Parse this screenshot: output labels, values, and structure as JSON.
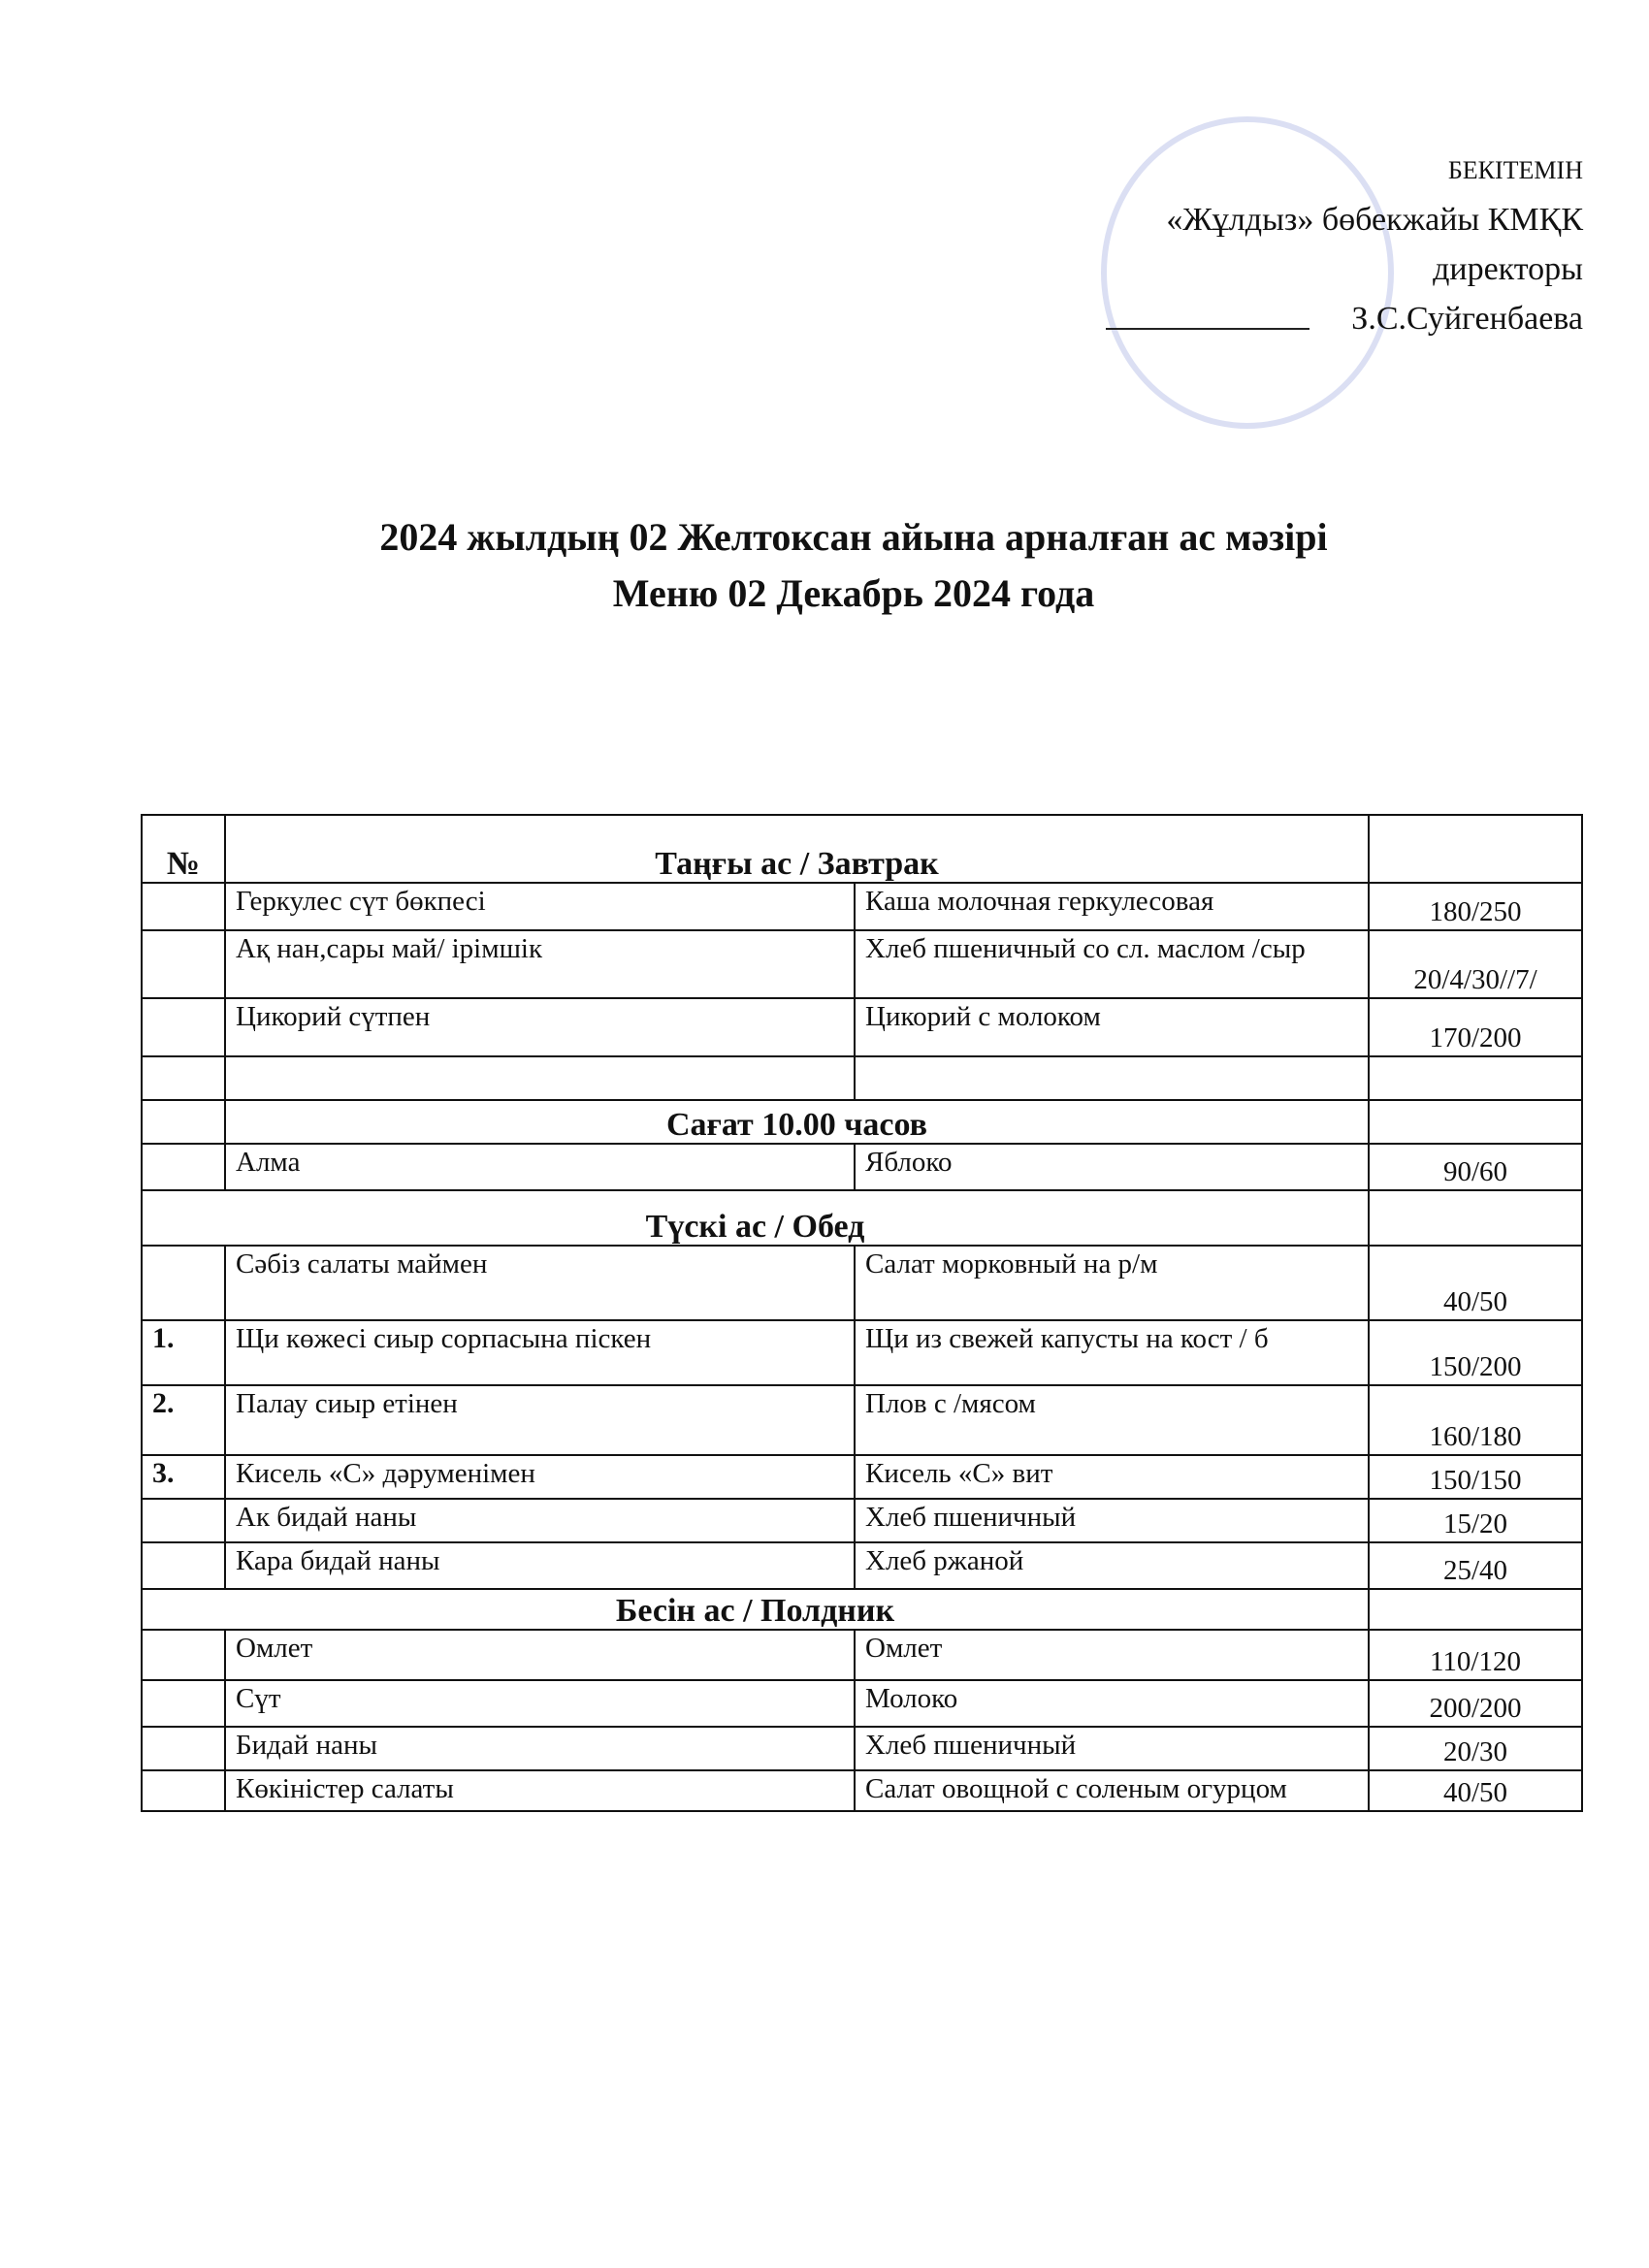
{
  "approval": {
    "lines": [
      "БЕКІТЕМІН",
      "«Жұлдыз» бөбекжайы КМҚК",
      "директоры",
      "З.С.Суйгенбаева"
    ]
  },
  "title": {
    "lines": [
      "2024 жылдың   02 Желтоксан  айына арналған ас мәзірі",
      "Меню 02 Декабрь   2024 года"
    ]
  },
  "table": {
    "rows": [
      [
        "№",
        "Таңғы ас / Завтрак"
      ],
      [
        null,
        "Геркулес  сүт бөкпесі",
        "Каша  молочная геркулесовая",
        "180/250"
      ],
      [
        null,
        "Ақ нан,сары май/ ірімшік",
        "Хлеб пшеничный со сл. маслом /сыр",
        "20/4/30//7/"
      ],
      [
        null,
        "Цикорий     сүтпен",
        "Цикорий    с молоком",
        "170/200"
      ],
      [
        null,
        null,
        null,
        null
      ],
      [
        null,
        "Сағат 10.00 часов"
      ],
      [
        null,
        "Алма",
        "Яблоко",
        "90/60"
      ],
      [
        "Түскі ас / Обед"
      ],
      [
        null,
        "Сәбіз    салаты маймен",
        "Салат морковный на р/м",
        "40/50"
      ],
      [
        "1.",
        "Щи    көжесі сиыр  сорпасына піскен",
        "Щи из свежей капусты   на кост / б",
        "150/200"
      ],
      [
        "2.",
        "Палау сиыр   етінен",
        "Плов с /мясом",
        "160/180"
      ],
      [
        "3.",
        "Кисель  «С»  дәруменімен",
        "Кисель «С» вит",
        "150/150"
      ],
      [
        null,
        "Ак бидай наны",
        "Хлеб пшеничный",
        "15/20"
      ],
      [
        null,
        "Кара бидай наны",
        "Хлеб ржаной",
        "25/40"
      ],
      [
        "Бесін ас / Полдник"
      ],
      [
        null,
        "Омлет",
        "Омлет",
        "110/120"
      ],
      [
        null,
        "Сүт",
        "Молоко",
        "200/200"
      ],
      [
        null,
        "Бидай наны",
        "Хлеб пшеничный",
        "20/30"
      ],
      [
        null,
        "Көкіністер салаты",
        "Салат овощной с соленым огурцом",
        "40/50"
      ]
    ]
  }
}
